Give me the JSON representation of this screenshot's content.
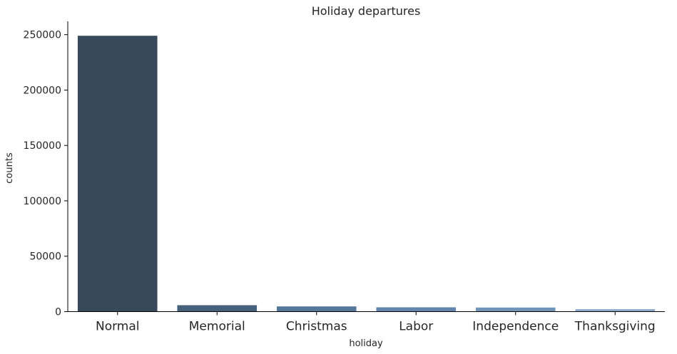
{
  "chart_data": {
    "type": "bar",
    "title": "Holiday departures",
    "xlabel": "holiday",
    "ylabel": "counts",
    "categories": [
      "Normal",
      "Memorial",
      "Christmas",
      "Labor",
      "Independence",
      "Thanksgiving"
    ],
    "values": [
      249000,
      5800,
      4700,
      3900,
      3700,
      2200
    ],
    "colors": [
      "#37495a",
      "#45607a",
      "#54779a",
      "#6185ac",
      "#7194b9",
      "#8da8c7"
    ],
    "ylim": [
      0,
      262000
    ],
    "yticks": [
      0,
      50000,
      100000,
      150000,
      200000,
      250000
    ],
    "ytick_labels": [
      "0",
      "50000",
      "100000",
      "150000",
      "200000",
      "250000"
    ],
    "grid": false,
    "legend": "none"
  }
}
